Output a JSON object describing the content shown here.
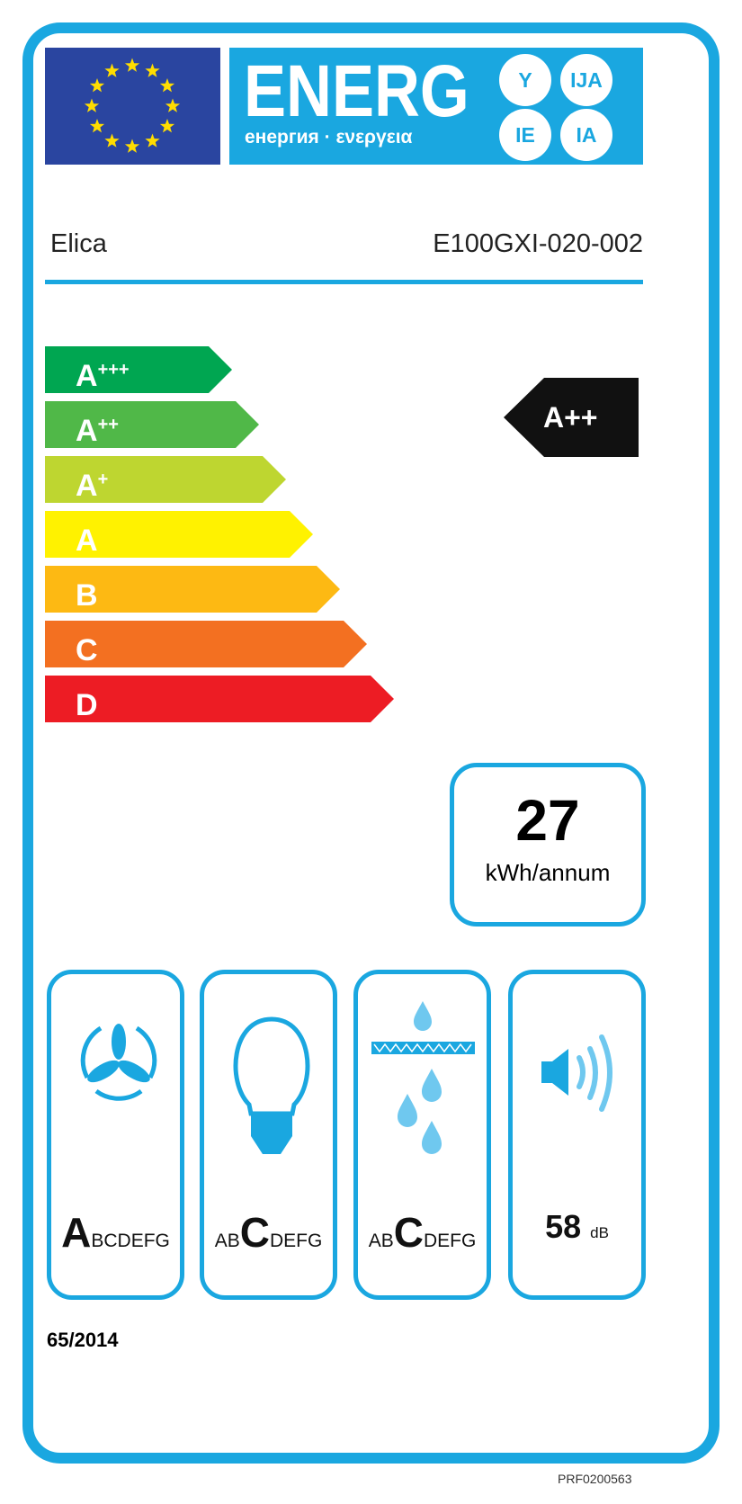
{
  "header": {
    "energ": "ENERG",
    "subtitle": "енергия · ενεργεια",
    "suffixes": [
      "Y",
      "IJA",
      "IE",
      "IA"
    ],
    "flag_icon": "eu-flag-icon"
  },
  "supplier": "Elica",
  "model": "E100GXI-020-002",
  "classes": [
    {
      "label": "A",
      "sup": "+++",
      "color": "#00a651"
    },
    {
      "label": "A",
      "sup": "++",
      "color": "#50b848"
    },
    {
      "label": "A",
      "sup": "+",
      "color": "#bed630"
    },
    {
      "label": "A",
      "sup": "",
      "color": "#fff200"
    },
    {
      "label": "B",
      "sup": "",
      "color": "#fdb913"
    },
    {
      "label": "C",
      "sup": "",
      "color": "#f37021"
    },
    {
      "label": "D",
      "sup": "",
      "color": "#ed1c24"
    }
  ],
  "rating": "A++",
  "energy": {
    "value": "27",
    "unit": "kWh/annum"
  },
  "pictograms": [
    {
      "icon": "fan-icon",
      "pre": "",
      "cls": "A",
      "post": "BCDEFG"
    },
    {
      "icon": "light-bulb-icon",
      "pre": "AB",
      "cls": "C",
      "post": "DEFG"
    },
    {
      "icon": "grease-filter-icon",
      "pre": "AB",
      "cls": "C",
      "post": "DEFG"
    },
    {
      "icon": "speaker-icon",
      "value": "58",
      "unit": "dB"
    }
  ],
  "regulation": "65/2014",
  "code": "PRF0200563",
  "colors": {
    "frame": "#1aa7e0",
    "flag": "#2a45a0",
    "star": "#ffdd00"
  }
}
